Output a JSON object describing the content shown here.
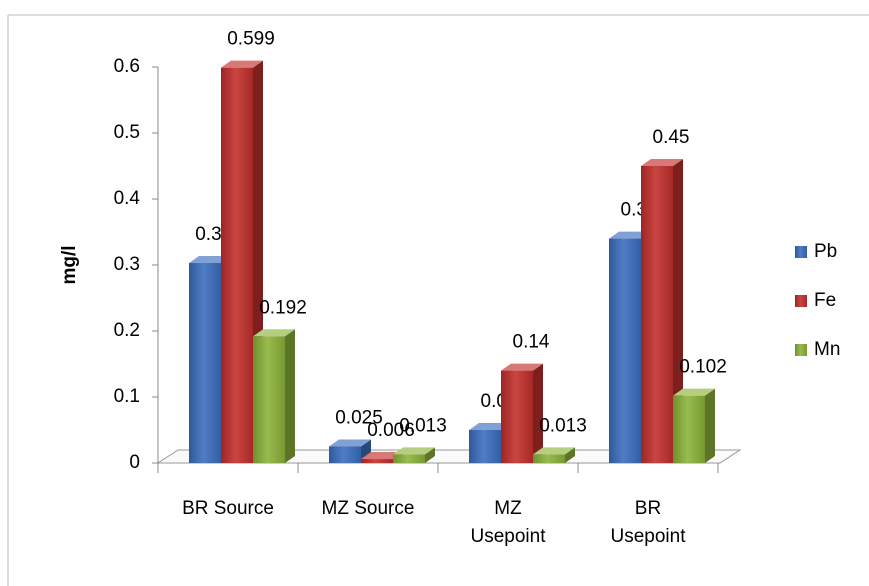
{
  "chart_data": {
    "type": "bar3d",
    "y_label": "mg/l",
    "categories": [
      "BR Source",
      "MZ Source",
      "MZ Usepoint",
      "BR Usepoint"
    ],
    "series": [
      {
        "name": "Pb",
        "color": "#3b6fc0",
        "values": [
          0.303,
          0.025,
          0.05,
          0.34
        ]
      },
      {
        "name": "Fe",
        "color": "#c3302d",
        "values": [
          0.599,
          0.006,
          0.14,
          0.45
        ]
      },
      {
        "name": "Mn",
        "color": "#8db43b",
        "values": [
          0.192,
          0.013,
          0.013,
          0.102
        ]
      }
    ],
    "ylim": [
      0,
      0.6
    ],
    "yticks": [
      0,
      0.1,
      0.2,
      0.3,
      0.4,
      0.5,
      0.6
    ],
    "grid": false,
    "legend": "right"
  }
}
